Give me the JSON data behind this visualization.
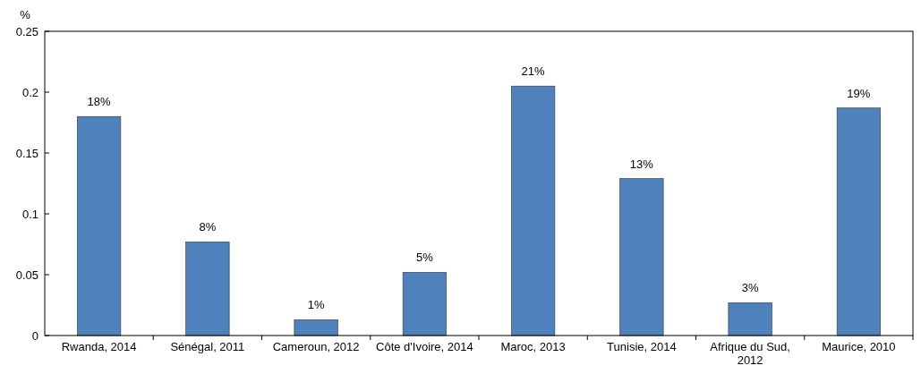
{
  "chart_data": {
    "type": "bar",
    "ylabel": "%",
    "categories": [
      "Rwanda, 2014",
      "Sénégal, 2011",
      "Cameroun, 2012",
      "Côte d'Ivoire, 2014",
      "Maroc, 2013",
      "Tunisie, 2014",
      "Afrique du Sud, 2012",
      "Maurice, 2010"
    ],
    "values": [
      0.18,
      0.077,
      0.013,
      0.052,
      0.205,
      0.129,
      0.027,
      0.187
    ],
    "value_labels": [
      "18%",
      "8%",
      "1%",
      "5%",
      "21%",
      "13%",
      "3%",
      "19%"
    ],
    "color": "#4f81bd",
    "ylim": [
      0,
      0.25
    ],
    "yticks": [
      0,
      0.05,
      0.1,
      0.15,
      0.2,
      0.25
    ],
    "grid": false
  }
}
